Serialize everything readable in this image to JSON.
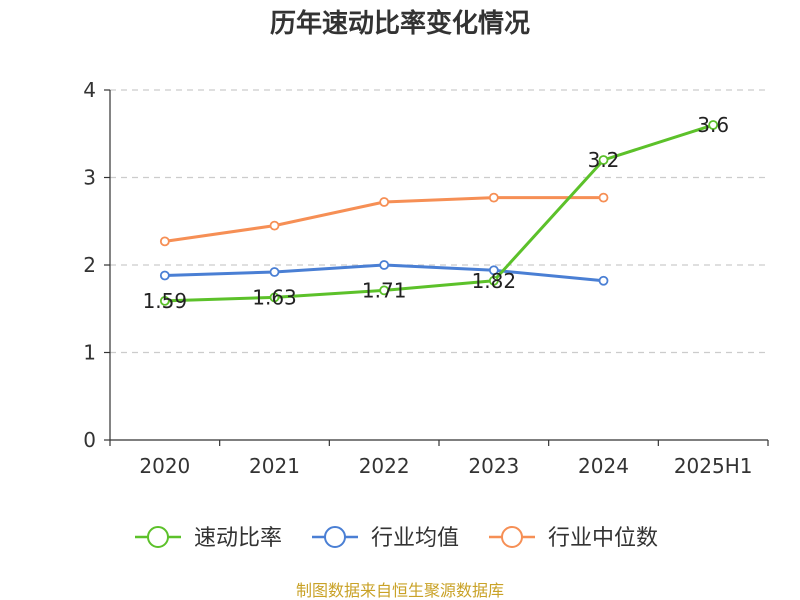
{
  "chart_data": {
    "type": "line",
    "title": "历年速动比率变化情况",
    "categories": [
      "2020",
      "2021",
      "2022",
      "2023",
      "2024",
      "2025H1"
    ],
    "ylim": [
      0,
      4
    ],
    "yticks": [
      "0",
      "1",
      "2",
      "3",
      "4"
    ],
    "grid": "horizontal dashed",
    "legend_position": "bottom",
    "series": [
      {
        "name": "速动比率",
        "color": "#5cc12a",
        "values": [
          1.59,
          1.63,
          1.71,
          1.82,
          3.2,
          3.6
        ],
        "labels": [
          "1.59",
          "1.63",
          "1.71",
          "1.82",
          "3.2",
          "3.6"
        ]
      },
      {
        "name": "行业均值",
        "color": "#4a7fd4",
        "values": [
          1.88,
          1.92,
          2.0,
          1.94,
          1.82,
          null
        ]
      },
      {
        "name": "行业中位数",
        "color": "#f68f55",
        "values": [
          2.27,
          2.45,
          2.72,
          2.77,
          2.77,
          null
        ]
      }
    ]
  },
  "footer": "制图数据来自恒生聚源数据库"
}
